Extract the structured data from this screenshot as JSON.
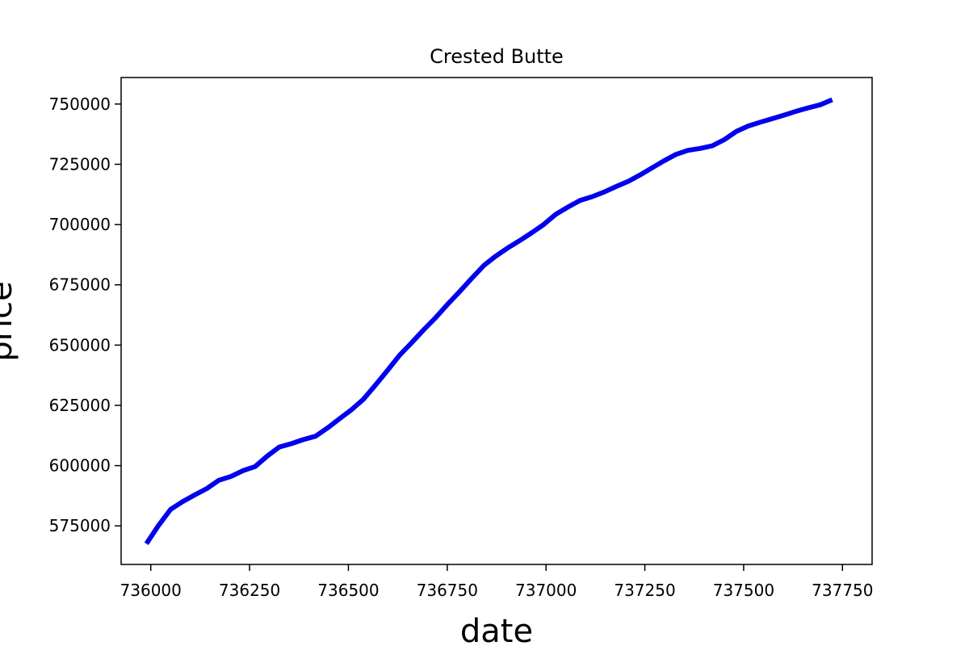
{
  "chart_data": {
    "type": "line",
    "title": "Crested Butte",
    "xlabel": "date",
    "ylabel": "price",
    "xlim": [
      735925,
      737825
    ],
    "ylim": [
      559000,
      761000
    ],
    "xticks": [
      736000,
      736250,
      736500,
      736750,
      737000,
      737250,
      737500,
      737750
    ],
    "yticks": [
      575000,
      600000,
      625000,
      650000,
      675000,
      700000,
      725000,
      750000
    ],
    "grid": false,
    "line_color": "#0000ee",
    "series": [
      {
        "x": [
          735989,
          736019,
          736050,
          736080,
          736111,
          736142,
          736172,
          736203,
          736233,
          736264,
          736295,
          736325,
          736356,
          736386,
          736417,
          736448,
          736478,
          736507,
          736538,
          736568,
          736599,
          736629,
          736660,
          736691,
          736721,
          736752,
          736782,
          736813,
          736844,
          736872,
          736903,
          736933,
          736964,
          736994,
          737025,
          737056,
          737086,
          737117,
          737147,
          737178,
          737209,
          737237,
          737268,
          737298,
          737329,
          737359,
          737390,
          737421,
          737451,
          737482,
          737512,
          737543,
          737574,
          737602,
          737633,
          737663,
          737694,
          737724
        ],
        "y": [
          567600,
          575000,
          581800,
          585000,
          587800,
          590500,
          593900,
          595500,
          597900,
          599600,
          604000,
          607700,
          609100,
          610800,
          612200,
          615700,
          619500,
          623100,
          627500,
          633300,
          639500,
          645700,
          651000,
          656400,
          661400,
          667100,
          672300,
          677900,
          683200,
          686800,
          690300,
          693300,
          696600,
          700000,
          704300,
          707300,
          710000,
          711600,
          713500,
          715800,
          718000,
          720500,
          723500,
          726400,
          729100,
          730800,
          731600,
          732700,
          735200,
          738700,
          740900,
          742500,
          744000,
          745400,
          747000,
          748400,
          749700,
          751800
        ]
      }
    ]
  }
}
